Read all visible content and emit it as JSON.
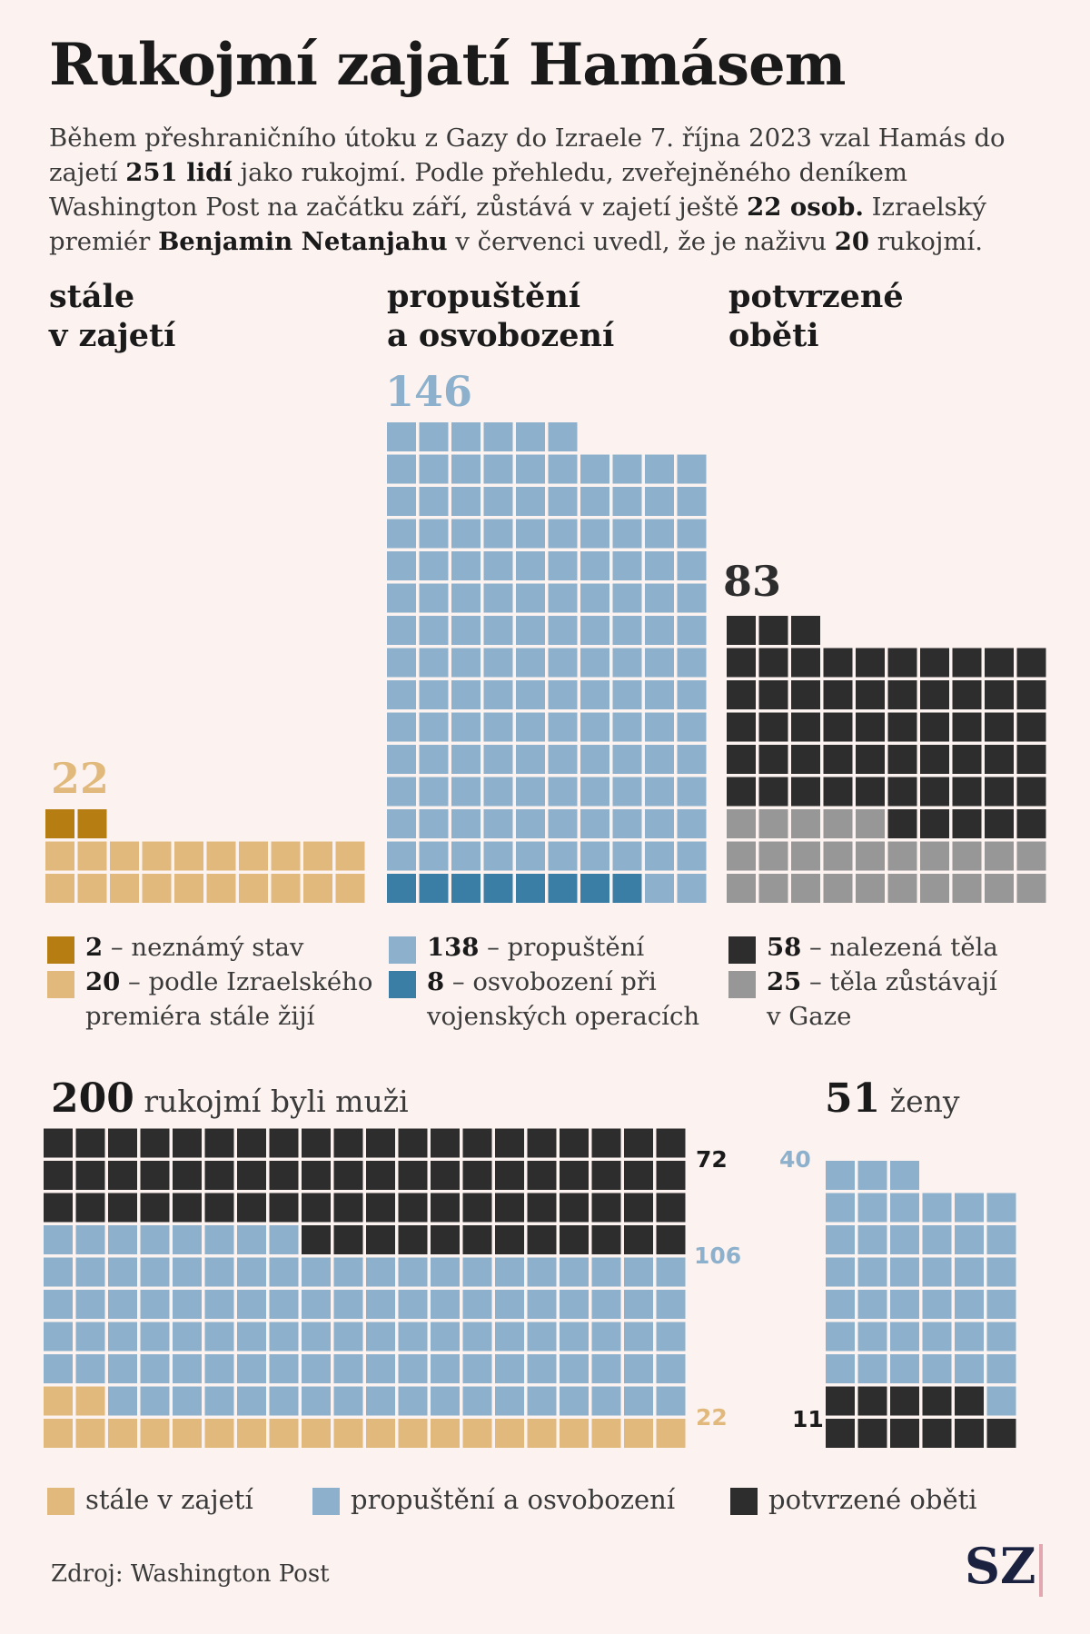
{
  "title": "Rukojmí zajatí Hamásem",
  "intro": {
    "p1": "Během přeshraničního útoku z Gazy do Izraele 7. října 2023 vzal Hamás do zajetí ",
    "b1": "251 lidí",
    "p2": " jako rukojmí. Podle přehledu, zveřejněného deníkem Washington Post na začátku září, zůstává v zajetí ještě ",
    "b2": "22 osob.",
    "p3": " Izraelský premiér ",
    "b3": "Benjamin Netanjahu",
    "p4": " v červenci uvedl, že je naživu ",
    "b4": "20",
    "p5": " rukojmí."
  },
  "colors": {
    "gold_dark": "#b67d12",
    "gold_light": "#e2b97c",
    "blue_light": "#8db1cc",
    "blue_dark": "#3a7ea6",
    "black": "#2d2d2d",
    "gray": "#979797",
    "background": "#fcf3f1"
  },
  "chart_data": [
    {
      "type": "waffle",
      "title_lines": [
        "stále",
        "v zajetí"
      ],
      "total_label": "22",
      "segments": [
        {
          "value": 2,
          "num": "2",
          "label": "neznámý stav",
          "color": "#b67d12"
        },
        {
          "value": 20,
          "num": "20",
          "label": "podle Izraelského premiéra stále žijí",
          "color": "#e2b97c"
        }
      ]
    },
    {
      "type": "waffle",
      "title_lines": [
        "propuštění",
        "a osvobození"
      ],
      "total_label": "146",
      "segments": [
        {
          "value": 138,
          "num": "138",
          "label": "propuštění",
          "color": "#8db1cc"
        },
        {
          "value": 8,
          "num": "8",
          "label": "osvobození při vojenských operacích",
          "color": "#3a7ea6"
        }
      ]
    },
    {
      "type": "waffle",
      "title_lines": [
        "potvrzené",
        "oběti"
      ],
      "total_label": "83",
      "segments": [
        {
          "value": 58,
          "num": "58",
          "label": "nalezená těla",
          "color": "#2d2d2d"
        },
        {
          "value": 25,
          "num": "25",
          "label": "těla zůstávají v Gaze",
          "color": "#979797"
        }
      ]
    },
    {
      "type": "waffle",
      "title_num": "200",
      "title_text": "rukojmí byli muži",
      "segments": [
        {
          "value": 72,
          "label": "72",
          "color": "#2d2d2d"
        },
        {
          "value": 106,
          "label": "106",
          "color": "#8db1cc"
        },
        {
          "value": 22,
          "label": "22",
          "color": "#e2b97c"
        }
      ]
    },
    {
      "type": "waffle",
      "title_num": "51",
      "title_text": "ženy",
      "segments": [
        {
          "value": 40,
          "label": "40",
          "color": "#8db1cc"
        },
        {
          "value": 11,
          "label": "11",
          "color": "#2d2d2d"
        }
      ]
    }
  ],
  "legend_bottom": [
    {
      "label": "stále v zajetí",
      "color": "#e2b97c"
    },
    {
      "label": "propuštění a osvobození",
      "color": "#8db1cc"
    },
    {
      "label": "potvrzené oběti",
      "color": "#2d2d2d"
    }
  ],
  "source": "Zdroj: Washington Post",
  "logo": "SZ"
}
